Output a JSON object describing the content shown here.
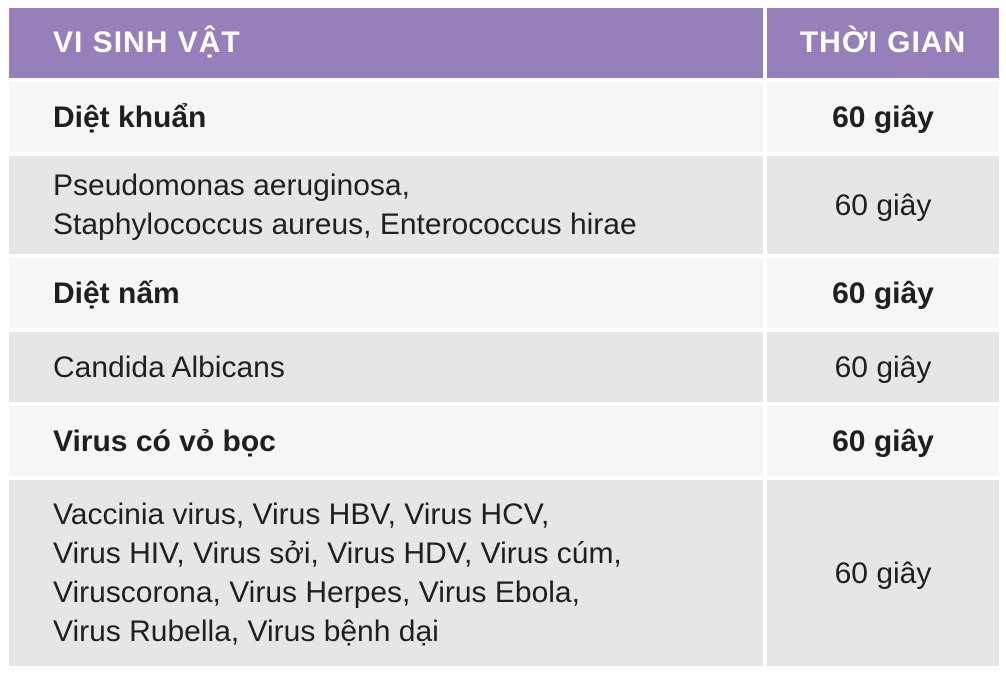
{
  "table": {
    "headers": {
      "organism": "VI SINH VẬT",
      "time": "THỜI GIAN"
    },
    "rows": [
      {
        "type": "group",
        "lines": [
          "Diệt khuẩn"
        ],
        "time": "60 giây"
      },
      {
        "type": "item",
        "lines": [
          "Pseudomonas aeruginosa,",
          "Staphylococcus aureus, Enterococcus hirae"
        ],
        "time": "60 giây"
      },
      {
        "type": "group",
        "lines": [
          "Diệt nấm"
        ],
        "time": "60 giây"
      },
      {
        "type": "item",
        "lines": [
          "Candida Albicans"
        ],
        "time": "60 giây"
      },
      {
        "type": "group",
        "lines": [
          "Virus có vỏ bọc"
        ],
        "time": "60 giây"
      },
      {
        "type": "item",
        "lines": [
          "Vaccinia virus, Virus HBV, Virus HCV,",
          "Virus HIV, Virus sởi, Virus HDV, Virus cúm,",
          "Viruscorona, Virus Herpes, Virus Ebola,",
          "Virus Rubella, Virus bệnh dại"
        ],
        "time": "60 giây"
      }
    ]
  },
  "colors": {
    "header_bg": "#9580ba",
    "header_text": "#ffffff",
    "group_row_bg": "#f6f6f6",
    "item_row_bg": "#e6e6e6",
    "text": "#1f1f1f"
  }
}
